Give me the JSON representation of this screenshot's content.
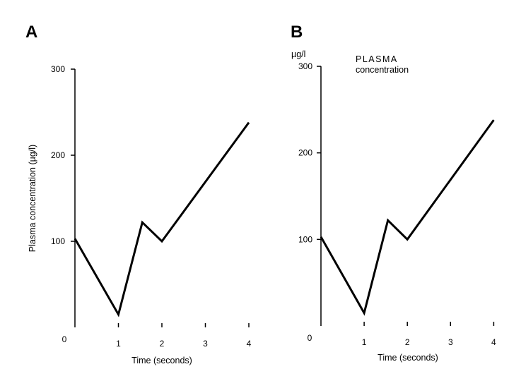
{
  "chart_data": [
    {
      "type": "line",
      "panel": "A",
      "x": [
        0,
        1,
        1.55,
        2,
        4
      ],
      "y": [
        103,
        15,
        122,
        100,
        238
      ],
      "xticks": [
        "0",
        "1",
        "2",
        "3",
        "4"
      ],
      "yticks": [
        "100",
        "200",
        "300"
      ],
      "xlim": [
        0,
        4
      ],
      "ylim": [
        0,
        300
      ],
      "xlabel": "Time (seconds)",
      "ylabel": "Plasma concentration (µg/l)"
    },
    {
      "type": "line",
      "panel": "B",
      "x": [
        0,
        1,
        1.55,
        2,
        4
      ],
      "y": [
        103,
        15,
        122,
        100,
        238
      ],
      "xticks": [
        "0",
        "1",
        "2",
        "3",
        "4"
      ],
      "yticks": [
        "100",
        "200",
        "300"
      ],
      "xlim": [
        0,
        4
      ],
      "ylim": [
        0,
        300
      ],
      "xlabel": "Time (seconds)",
      "unit_label": "µg/l",
      "annotation_line1": "PLASMA",
      "annotation_line2": "concentration"
    }
  ]
}
